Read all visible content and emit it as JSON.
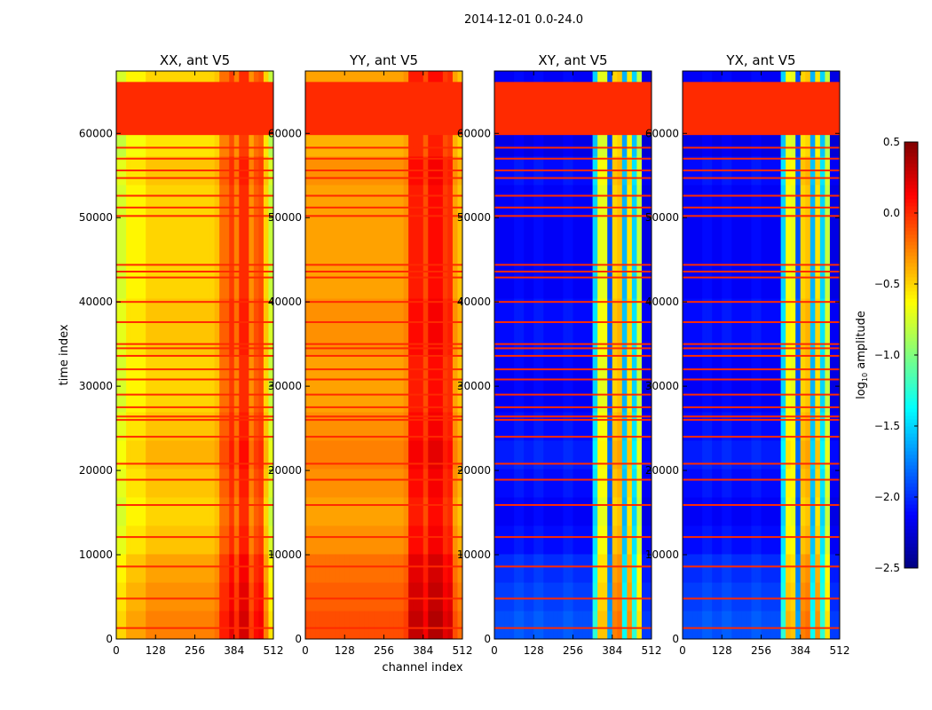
{
  "chart_data": {
    "type": "heatmap",
    "title": "2014-12-01 0.0-24.0",
    "xlabel": "channel index",
    "ylabel": "time index",
    "xlim": [
      0,
      512
    ],
    "ylim": [
      0,
      67400
    ],
    "xticks": [
      0,
      128,
      256,
      384,
      512
    ],
    "yticks": [
      0,
      10000,
      20000,
      30000,
      40000,
      50000,
      60000
    ],
    "colorbar": {
      "label_prefix": "log",
      "label_sub": "10",
      "label_suffix": " amplitude",
      "colormap": "jet",
      "range": [
        -2.5,
        0.5
      ],
      "ticks": [
        "0.5",
        "0.0",
        "−0.5",
        "−1.0",
        "−1.5",
        "−2.0",
        "−2.5"
      ],
      "tick_values": [
        0.5,
        0.0,
        -0.5,
        -1.0,
        -1.5,
        -2.0,
        -2.5
      ]
    },
    "channel_bin_width": 16,
    "time_bins": 20,
    "time_offsets": [
      0.25,
      0.2,
      0.15,
      0.05,
      0.0,
      0.05,
      0.1,
      0.05,
      0.0,
      0.0,
      0.05,
      0.05,
      0.0,
      0.0,
      0.0,
      0.0,
      0.05,
      -0.05,
      0.0,
      0.0
    ],
    "flagged_block": {
      "t_start": 59800,
      "t_end": 66100,
      "value": 0.0
    },
    "flagged_rows": [
      1300,
      4800,
      8600,
      12100,
      15900,
      18900,
      20800,
      24000,
      26000,
      26400,
      27500,
      29000,
      30800,
      32000,
      33600,
      34500,
      35000,
      37600,
      40000,
      42900,
      43600,
      44400,
      50200,
      51200,
      52600,
      54700,
      55600,
      57000,
      58300
    ],
    "flag_value": 0.0,
    "panels": [
      {
        "title": "XX, ant V5",
        "channel_profile": [
          -0.75,
          -0.75,
          -0.6,
          -0.6,
          -0.6,
          -0.6,
          -0.5,
          -0.5,
          -0.5,
          -0.5,
          -0.5,
          -0.5,
          -0.5,
          -0.5,
          -0.5,
          -0.5,
          -0.5,
          -0.5,
          -0.5,
          -0.5,
          -0.45,
          -0.2,
          -0.2,
          -0.05,
          -0.25,
          0.0,
          0.0,
          -0.3,
          -0.15,
          -0.1,
          -0.5,
          -0.8
        ]
      },
      {
        "title": "YY, ant V5",
        "channel_profile": [
          -0.35,
          -0.35,
          -0.35,
          -0.35,
          -0.35,
          -0.35,
          -0.35,
          -0.35,
          -0.35,
          -0.35,
          -0.35,
          -0.35,
          -0.35,
          -0.35,
          -0.35,
          -0.35,
          -0.35,
          -0.35,
          -0.35,
          -0.35,
          -0.3,
          0.05,
          0.05,
          0.05,
          -0.1,
          0.1,
          0.1,
          0.1,
          -0.05,
          0.0,
          -0.35,
          -0.45
        ]
      },
      {
        "title": "XY, ant V5",
        "channel_profile": [
          -2.15,
          -2.15,
          -2.15,
          -2.15,
          -2.1,
          -2.1,
          -2.15,
          -2.15,
          -2.1,
          -2.1,
          -2.15,
          -2.15,
          -2.15,
          -2.15,
          -2.1,
          -2.1,
          -2.15,
          -2.15,
          -2.15,
          -2.15,
          -1.5,
          -0.7,
          -0.7,
          -1.9,
          -0.5,
          -0.45,
          -1.6,
          -0.55,
          -1.5,
          -0.8,
          -2.2,
          -2.2
        ]
      },
      {
        "title": "YX, ant V5",
        "channel_profile": [
          -2.15,
          -2.15,
          -2.15,
          -2.15,
          -2.1,
          -2.1,
          -2.15,
          -2.15,
          -2.1,
          -2.1,
          -2.15,
          -2.15,
          -2.15,
          -2.15,
          -2.1,
          -2.1,
          -2.15,
          -2.15,
          -2.15,
          -2.15,
          -1.5,
          -0.65,
          -0.7,
          -1.9,
          -0.5,
          -0.45,
          -1.6,
          -0.55,
          -1.5,
          -0.8,
          -2.2,
          -2.2
        ]
      }
    ]
  }
}
